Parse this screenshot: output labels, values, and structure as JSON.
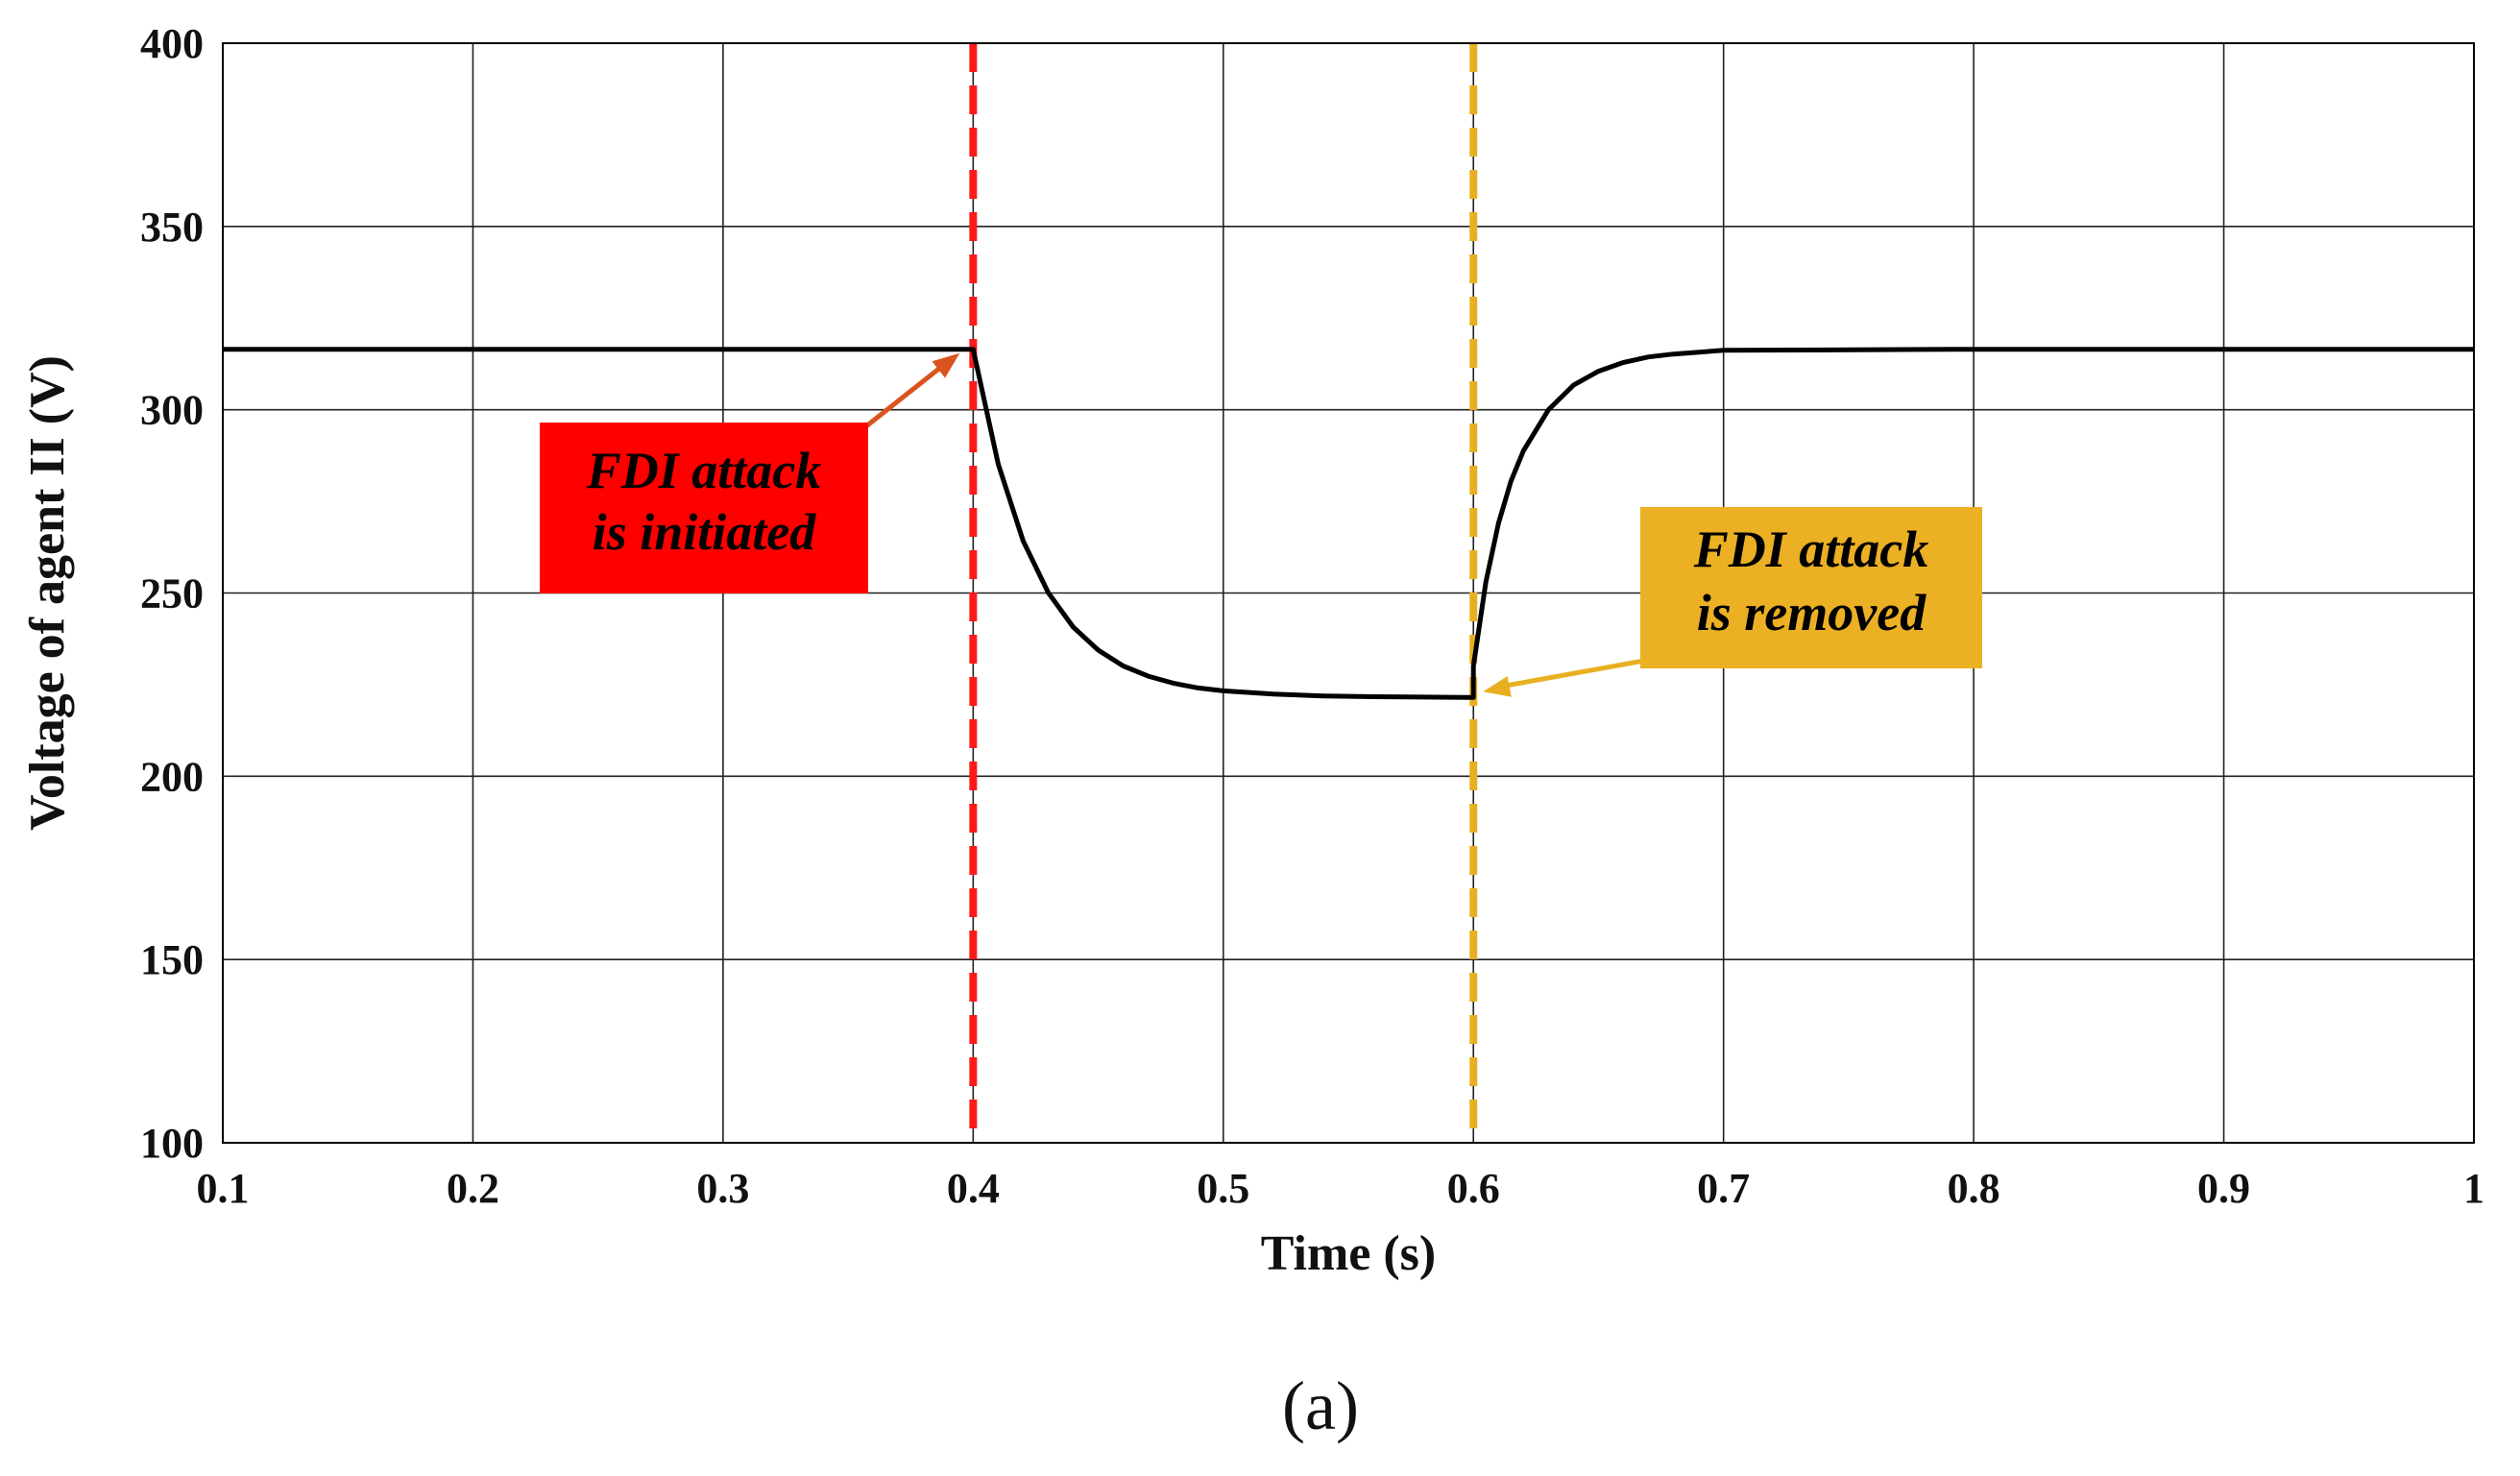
{
  "chart_data": {
    "type": "line",
    "xlabel": "Time (s)",
    "ylabel": "Voltage of agent II (V)",
    "xlim": [
      0.1,
      1
    ],
    "ylim": [
      100,
      400
    ],
    "xticks": [
      0.1,
      0.2,
      0.3,
      0.4,
      0.5,
      0.6,
      0.7,
      0.8,
      0.9,
      1
    ],
    "xtick_labels": [
      "0.1",
      "0.2",
      "0.3",
      "0.4",
      "0.5",
      "0.6",
      "0.7",
      "0.8",
      "0.9",
      "1"
    ],
    "yticks": [
      100,
      150,
      200,
      250,
      300,
      350,
      400
    ],
    "ytick_labels": [
      "100",
      "150",
      "200",
      "250",
      "300",
      "350",
      "400"
    ],
    "grid": true,
    "series": [
      {
        "color": "#000000",
        "x": [
          0.1,
          0.2,
          0.3,
          0.4,
          0.41,
          0.42,
          0.43,
          0.44,
          0.45,
          0.46,
          0.47,
          0.48,
          0.49,
          0.5,
          0.52,
          0.54,
          0.56,
          0.58,
          0.6,
          0.6,
          0.605,
          0.61,
          0.615,
          0.62,
          0.63,
          0.64,
          0.65,
          0.66,
          0.67,
          0.68,
          0.7,
          0.8,
          0.9,
          1.0
        ],
        "y": [
          316.5,
          316.5,
          316.5,
          316.5,
          285.2,
          264.2,
          250.1,
          240.7,
          234.4,
          230.1,
          227.3,
          225.4,
          224.1,
          223.3,
          222.4,
          221.9,
          221.7,
          221.6,
          221.5,
          230.0,
          253.0,
          269.0,
          280.5,
          288.8,
          300.0,
          306.7,
          310.5,
          312.9,
          314.4,
          315.2,
          316.2,
          316.5,
          316.5,
          316.5
        ]
      }
    ],
    "vlines": [
      {
        "x": 0.4,
        "color": "#ff1a1a",
        "style": "dashed"
      },
      {
        "x": 0.6,
        "color": "#e8b020",
        "style": "dashed"
      }
    ],
    "annotations": [
      {
        "lines": [
          "FDI attack",
          "is initiated"
        ],
        "box_color": "#ff0000",
        "arrow_color": "#d9541e",
        "arrow_target": [
          0.4,
          316.5
        ]
      },
      {
        "lines": [
          "FDI attack",
          "is removed"
        ],
        "box_color": "#ebb024",
        "arrow_color": "#e8b020",
        "arrow_target": [
          0.6,
          221.5
        ]
      }
    ]
  },
  "panel_label": "(a)"
}
